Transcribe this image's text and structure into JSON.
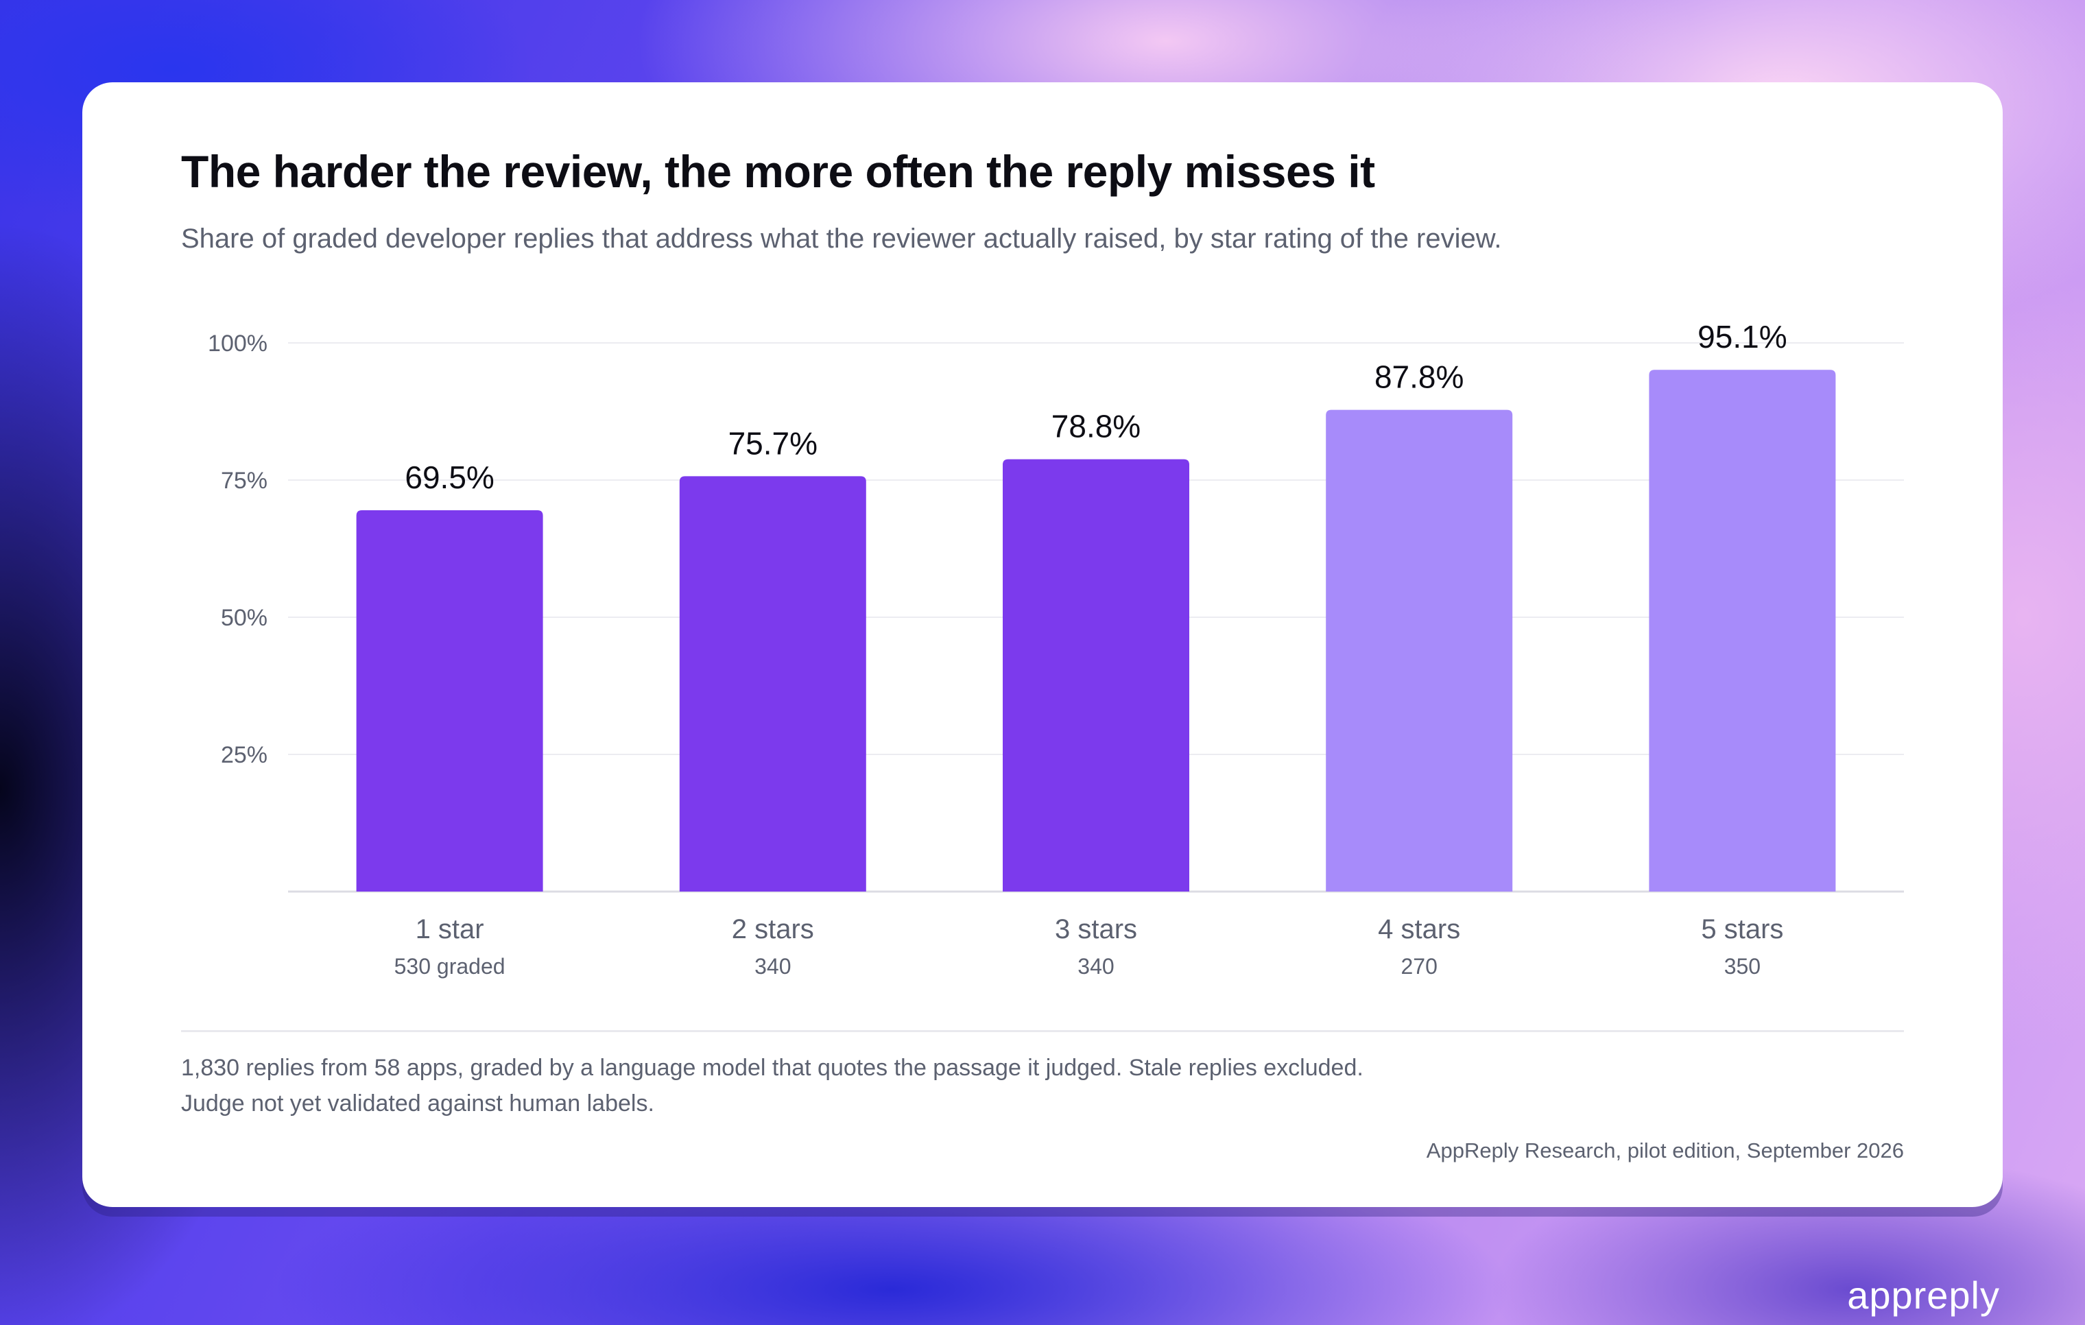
{
  "title": "The harder the review, the more often the reply misses it",
  "subtitle": "Share of graded developer replies that address what the reviewer actually raised, by star rating of the review.",
  "footnote": {
    "line1": "1,830 replies from 58 apps, graded by a language model that quotes the passage it judged. Stale replies excluded.",
    "line2": "Judge not yet validated against human labels."
  },
  "source": "AppReply Research, pilot edition, September 2026",
  "brand": "appreply",
  "colors": {
    "bar_dark": "#7c3aed",
    "bar_light": "#a78bfa",
    "gridline": "#ececf1",
    "axis_text": "#5c6170",
    "value_text": "#0d0d14"
  },
  "chart_data": {
    "type": "bar",
    "categories": [
      "1 star",
      "2 stars",
      "3 stars",
      "4 stars",
      "5 stars"
    ],
    "sample_labels": [
      "530 graded",
      "340",
      "340",
      "270",
      "350"
    ],
    "values": [
      69.5,
      75.7,
      78.8,
      87.8,
      95.1
    ],
    "value_labels": [
      "69.5%",
      "75.7%",
      "78.8%",
      "87.8%",
      "95.1%"
    ],
    "bar_colors": [
      "#7c3aed",
      "#7c3aed",
      "#7c3aed",
      "#a78bfa",
      "#a78bfa"
    ],
    "ylim": [
      0,
      100
    ],
    "yticks": [
      25,
      50,
      75,
      100
    ],
    "ytick_labels": [
      "25%",
      "50%",
      "75%",
      "100%"
    ],
    "grid": true
  }
}
